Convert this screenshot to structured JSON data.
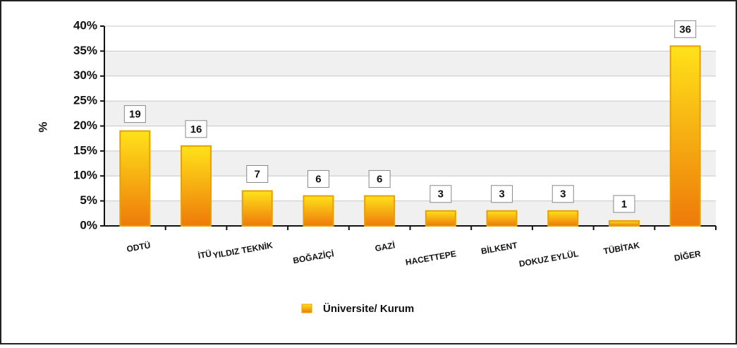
{
  "chart_data": {
    "type": "bar",
    "y_label": "%",
    "categories": [
      "ODTÜ",
      "İTÜ",
      "YILDIZ TEKNİK",
      "BOĞAZİÇİ",
      "GAZİ",
      "HACETTEPE",
      "BİLKENT",
      "DOKUZ EYLÜL",
      "TÜBİTAK",
      "DİĞER"
    ],
    "series": [
      {
        "name": "Üniversite/ Kurum",
        "color": "#ee7a0a",
        "values": [
          19,
          16,
          7,
          6,
          6,
          3,
          3,
          3,
          1,
          36
        ]
      }
    ],
    "ylim": [
      0,
      40
    ],
    "yticks": [
      {
        "value": 0,
        "label": "0%"
      },
      {
        "value": 5,
        "label": "5%"
      },
      {
        "value": 10,
        "label": "10%"
      },
      {
        "value": 15,
        "label": "15%"
      },
      {
        "value": 20,
        "label": "20%"
      },
      {
        "value": 25,
        "label": "25%"
      },
      {
        "value": 30,
        "label": "30%"
      },
      {
        "value": 35,
        "label": "35%"
      },
      {
        "value": 40,
        "label": "40%"
      }
    ],
    "grid": true
  }
}
